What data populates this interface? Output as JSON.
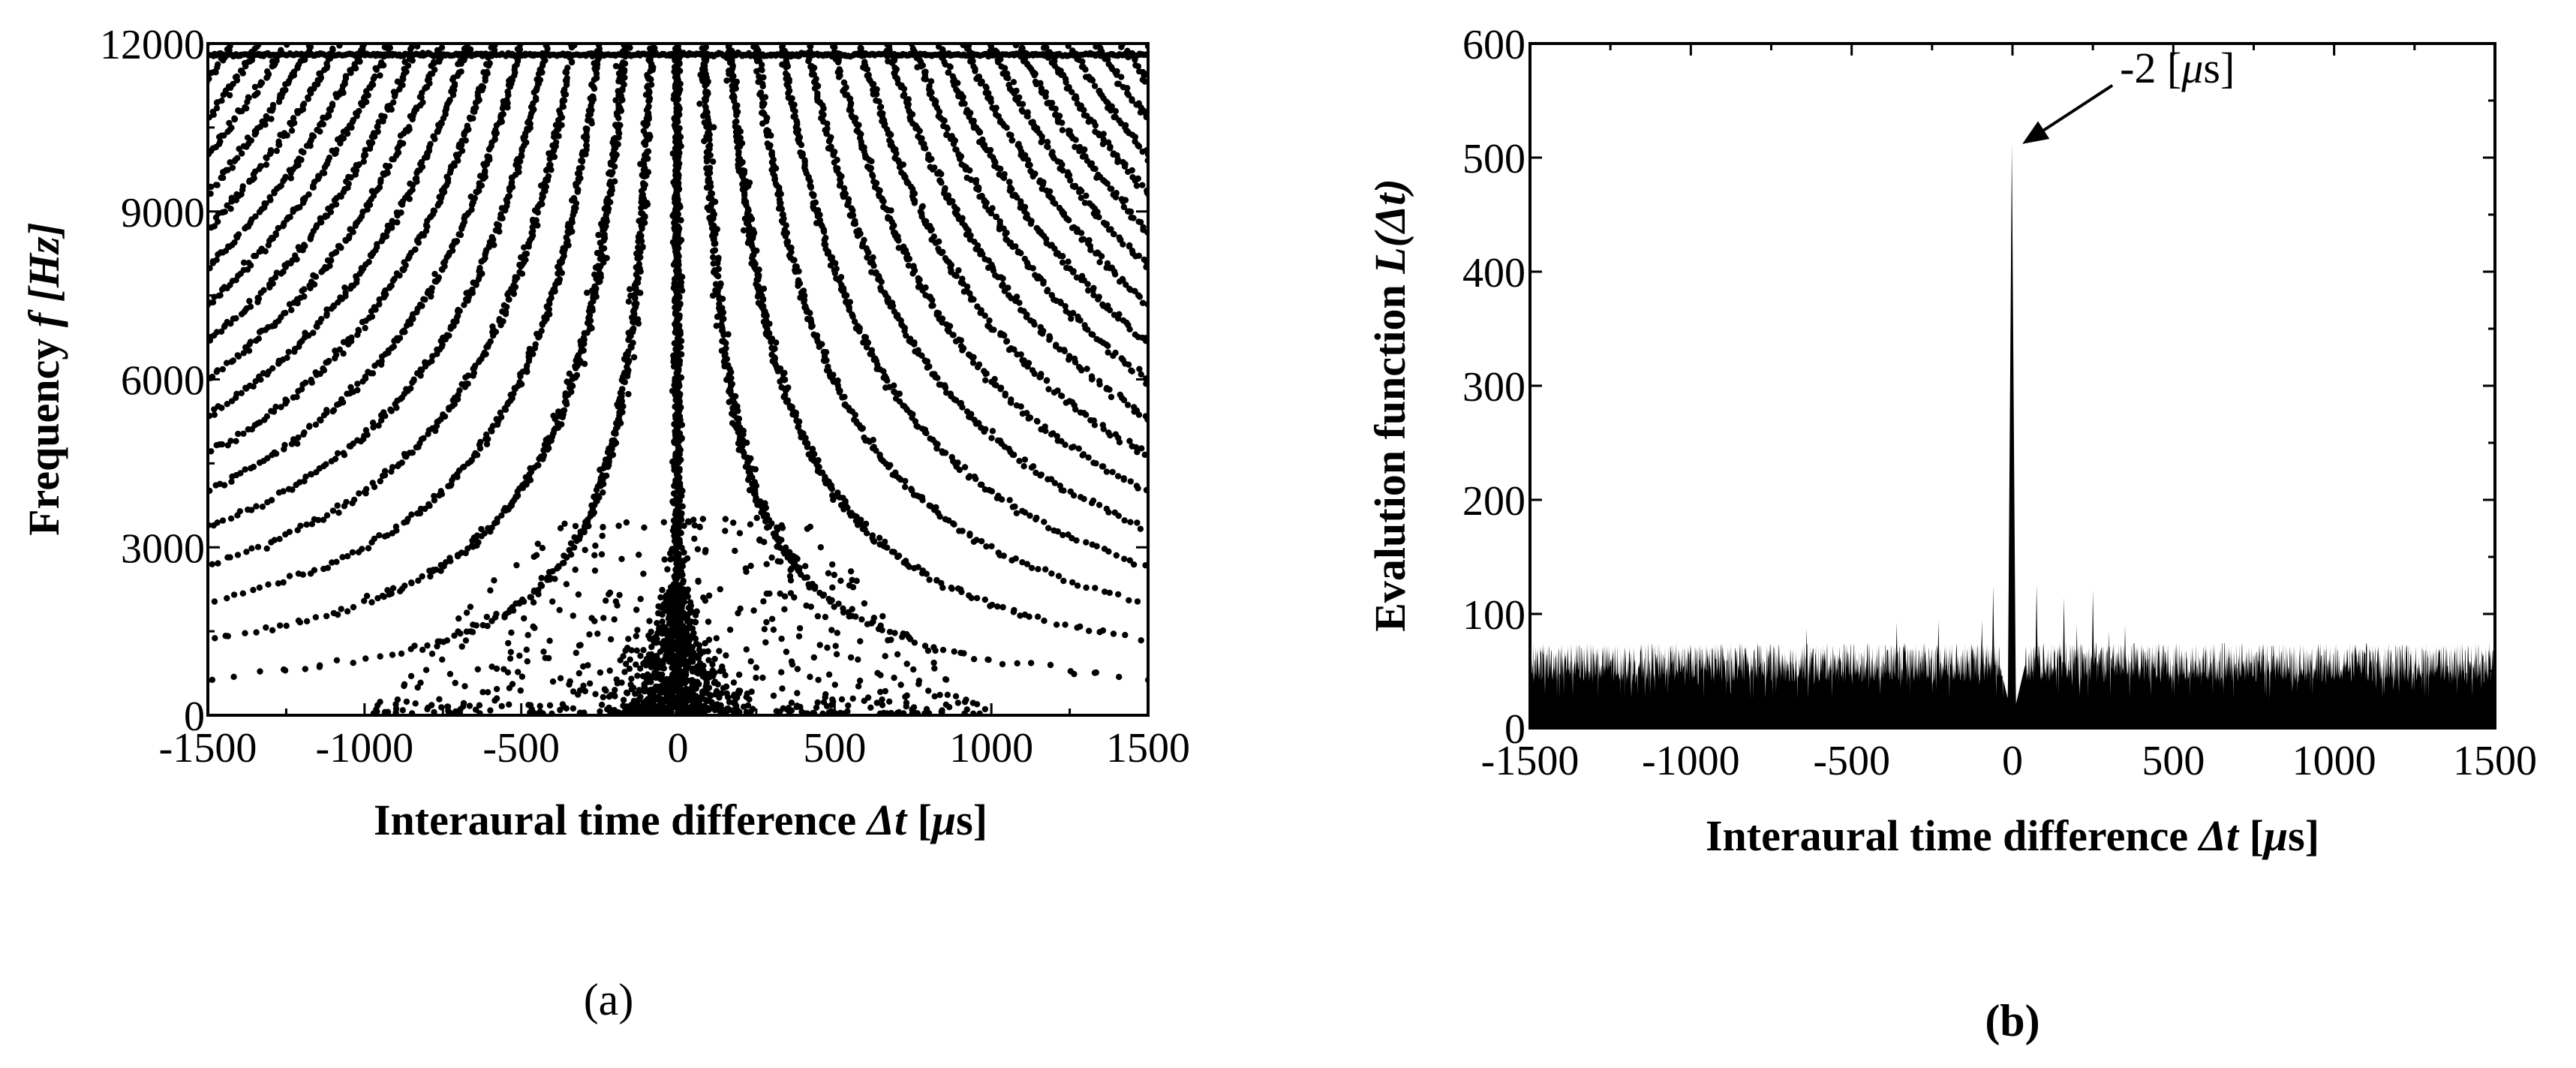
{
  "chart_data": [
    {
      "panel": "(a)",
      "type": "scatter",
      "title": "",
      "xlabel": "Interaural time difference Δt [μs]",
      "ylabel": "Frequency f [Hz]",
      "xlim": [
        -1500,
        1500
      ],
      "ylim": [
        0,
        12000
      ],
      "xticks": [
        "-1500",
        "-1000",
        "-500",
        "0",
        "500",
        "1000",
        "1500"
      ],
      "yticks": [
        "0",
        "3000",
        "6000",
        "9000",
        "12000"
      ],
      "grid": false,
      "legend": "none",
      "marker_color": "#000000",
      "pattern": "hyperbolic bands of points: delta_t = k / f (k = ±1, ±2, ...), plus a dense cluster near Δt = 0 at low frequencies",
      "hyperbola_orders": 42,
      "hyperbola_offset_us": -2
    },
    {
      "panel": "(b)",
      "type": "bar",
      "title": "",
      "xlabel": "Interaural time difference Δt [μs]",
      "ylabel": "Evaluation function L(Δt)",
      "xlim": [
        -1500,
        1500
      ],
      "ylim": [
        0,
        600
      ],
      "xticks": [
        "-1500",
        "-1000",
        "-500",
        "0",
        "500",
        "1000",
        "1500"
      ],
      "yticks": [
        "0",
        "100",
        "200",
        "300",
        "400",
        "500",
        "600"
      ],
      "grid": false,
      "legend": "none",
      "baseline_range": [
        40,
        75
      ],
      "peaks": [
        {
          "x": -2,
          "y": 512
        },
        {
          "x": -140,
          "y": 70
        },
        {
          "x": -95,
          "y": 95
        },
        {
          "x": -60,
          "y": 125
        },
        {
          "x": 75,
          "y": 126
        },
        {
          "x": 110,
          "y": 70
        },
        {
          "x": 160,
          "y": 115
        },
        {
          "x": 200,
          "y": 90
        },
        {
          "x": 250,
          "y": 121
        },
        {
          "x": 300,
          "y": 85
        },
        {
          "x": 350,
          "y": 90
        },
        {
          "x": -230,
          "y": 95
        },
        {
          "x": -360,
          "y": 93
        },
        {
          "x": -640,
          "y": 88
        }
      ],
      "annotation": {
        "text": "-2 [μs]",
        "x": -2,
        "y": 512
      }
    }
  ],
  "labels": {
    "a": {
      "ylabel_main": "Frequency ",
      "ylabel_var": "f",
      "ylabel_unit": " [Hz]",
      "xlabel_main": "Interaural time difference ",
      "xlabel_var": "Δt",
      "xlabel_unit_open": " [",
      "xlabel_mu": "μ",
      "xlabel_unit_close": "s]",
      "panel": "(a)"
    },
    "b": {
      "ylabel_main": "Evalution function ",
      "ylabel_var": "L",
      "ylabel_paren": "(Δt)",
      "xlabel_main": "Interaural time difference ",
      "xlabel_var": "Δt",
      "xlabel_unit_open": " [",
      "xlabel_mu": "μ",
      "xlabel_unit_close": "s]",
      "annotation_pre": "-2 [",
      "annotation_mu": "μ",
      "annotation_post": "s]",
      "panel": "(b)"
    }
  }
}
